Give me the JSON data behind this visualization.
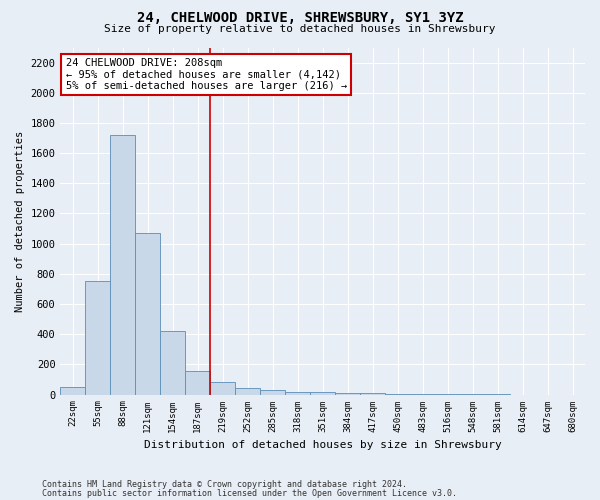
{
  "title": "24, CHELWOOD DRIVE, SHREWSBURY, SY1 3YZ",
  "subtitle": "Size of property relative to detached houses in Shrewsbury",
  "xlabel": "Distribution of detached houses by size in Shrewsbury",
  "ylabel": "Number of detached properties",
  "bar_color": "#c8d8e8",
  "bar_edge_color": "#5b8db8",
  "categories": [
    "22sqm",
    "55sqm",
    "88sqm",
    "121sqm",
    "154sqm",
    "187sqm",
    "219sqm",
    "252sqm",
    "285sqm",
    "318sqm",
    "351sqm",
    "384sqm",
    "417sqm",
    "450sqm",
    "483sqm",
    "516sqm",
    "548sqm",
    "581sqm",
    "614sqm",
    "647sqm",
    "680sqm"
  ],
  "values": [
    50,
    750,
    1720,
    1070,
    420,
    155,
    80,
    45,
    30,
    20,
    15,
    10,
    10,
    3,
    2,
    1,
    1,
    1,
    0,
    0,
    0
  ],
  "ylim": [
    0,
    2300
  ],
  "yticks": [
    0,
    200,
    400,
    600,
    800,
    1000,
    1200,
    1400,
    1600,
    1800,
    2000,
    2200
  ],
  "vline_x_index": 5.5,
  "annotation_line1": "24 CHELWOOD DRIVE: 208sqm",
  "annotation_line2": "← 95% of detached houses are smaller (4,142)",
  "annotation_line3": "5% of semi-detached houses are larger (216) →",
  "annotation_box_color": "#ffffff",
  "annotation_box_edge": "#cc0000",
  "vline_color": "#cc0000",
  "footer1": "Contains HM Land Registry data © Crown copyright and database right 2024.",
  "footer2": "Contains public sector information licensed under the Open Government Licence v3.0.",
  "background_color": "#e8eef5",
  "grid_color": "#ffffff"
}
